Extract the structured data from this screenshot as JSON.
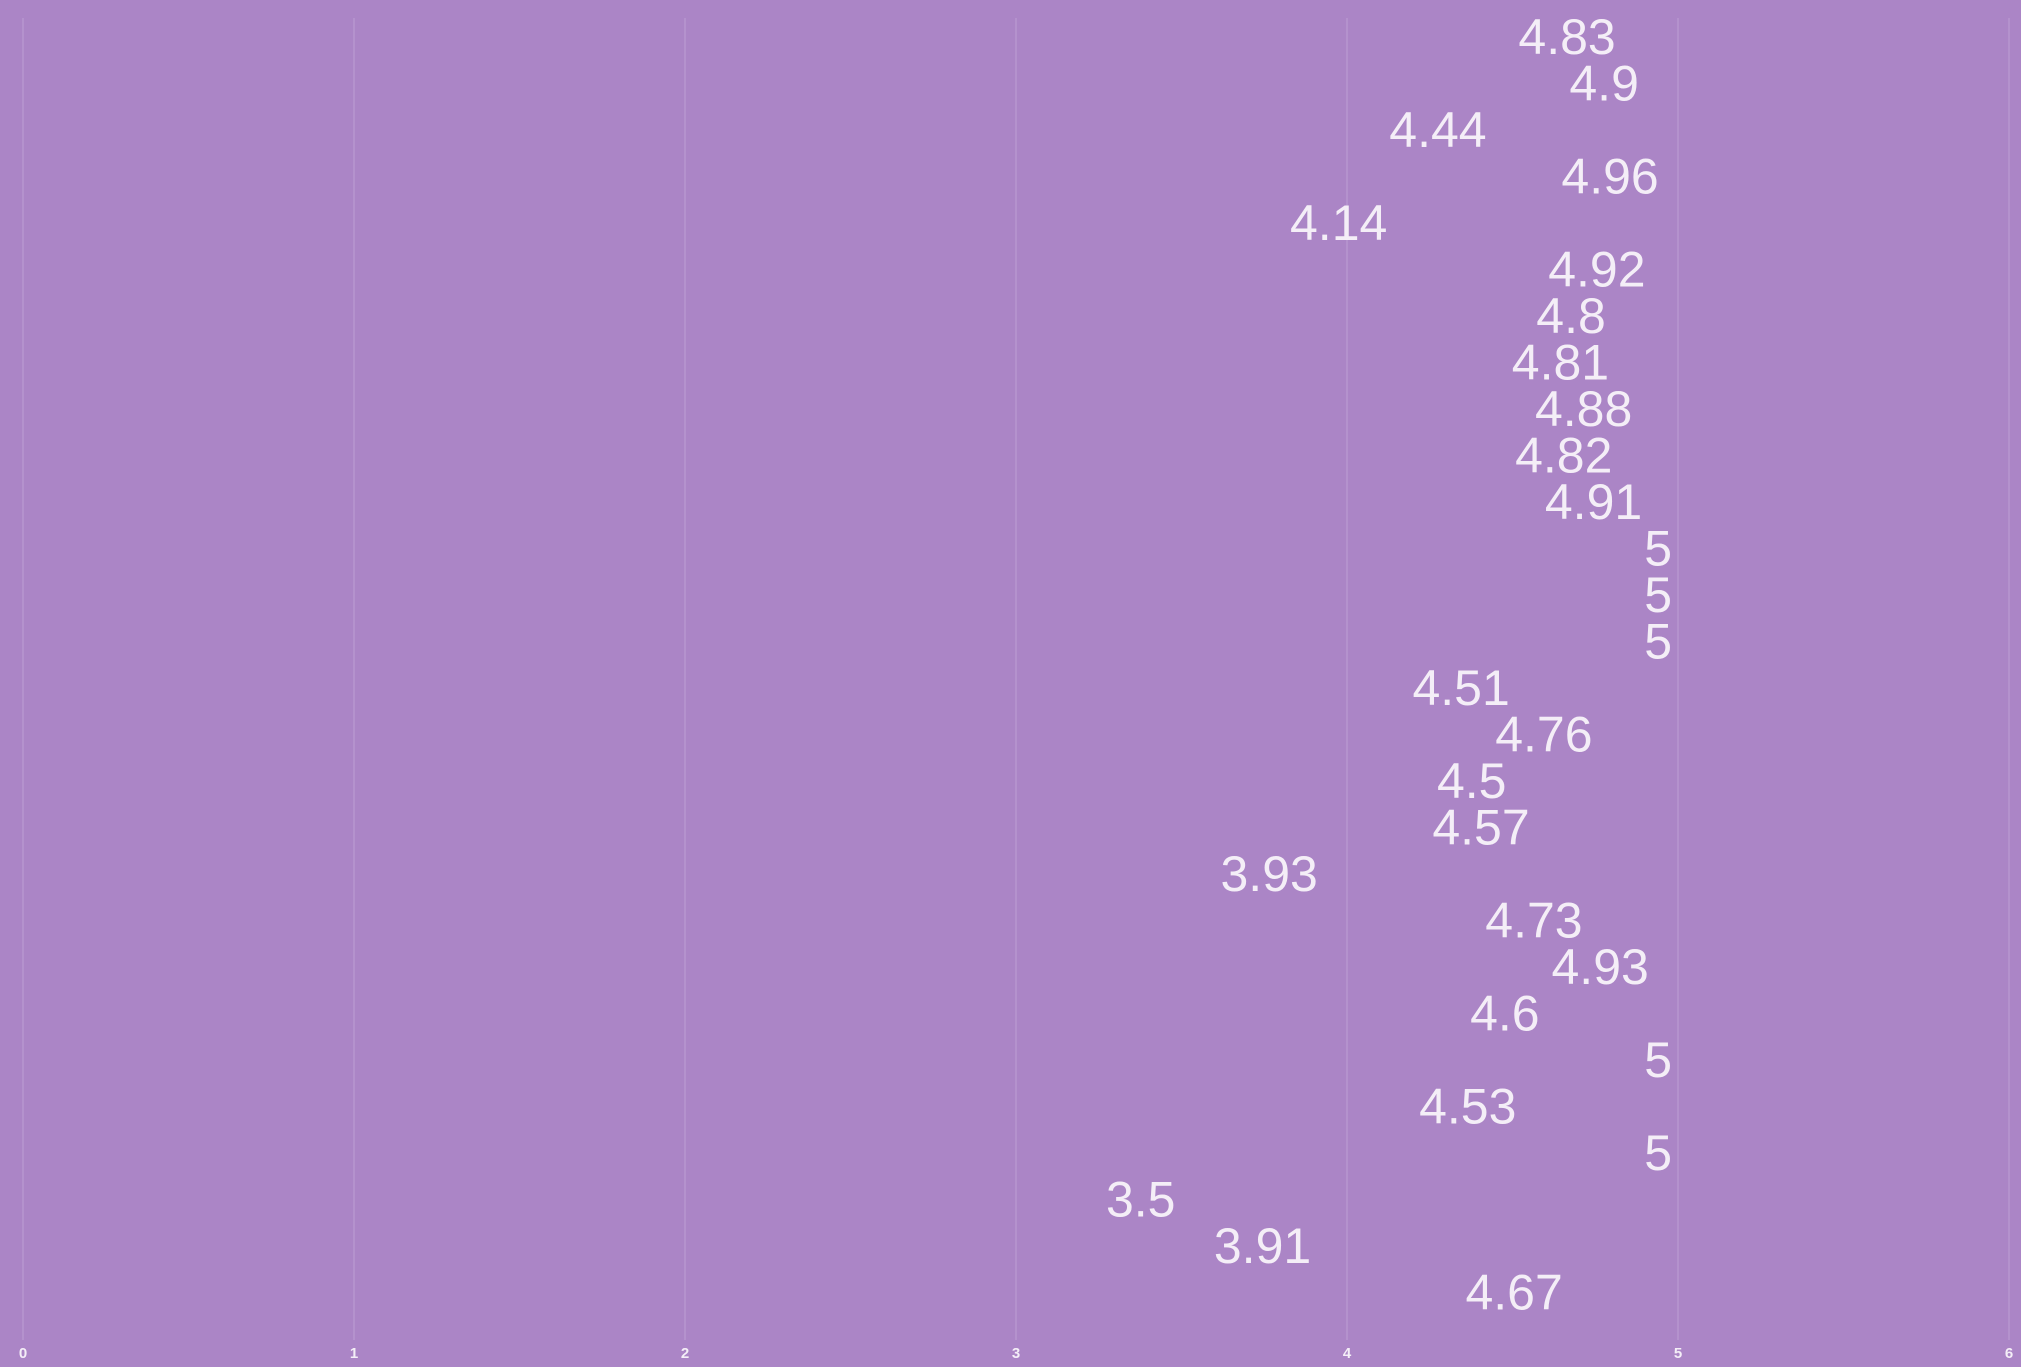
{
  "chart_data": {
    "type": "label",
    "values": [
      4.83,
      4.9,
      4.44,
      4.96,
      4.14,
      4.92,
      4.8,
      4.81,
      4.88,
      4.82,
      4.91,
      5,
      5,
      5,
      4.51,
      4.76,
      4.5,
      4.57,
      3.93,
      4.73,
      4.93,
      4.6,
      5,
      4.53,
      5,
      3.5,
      3.91,
      4.67
    ],
    "xlim": [
      0,
      6
    ],
    "xticks": [
      0,
      1,
      2,
      3,
      4,
      5,
      6
    ],
    "grid": true,
    "color": "#f4eef7"
  }
}
